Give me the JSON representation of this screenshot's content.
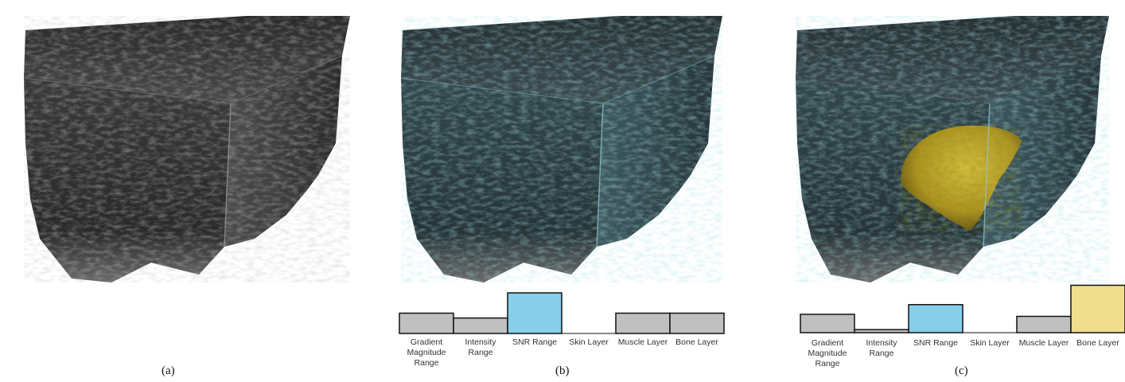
{
  "panels": [
    {
      "caption": "(a)",
      "overlay": "none",
      "has_bars": false
    },
    {
      "caption": "(b)",
      "overlay": "cyan",
      "has_bars": true,
      "bars": [
        {
          "label": [
            "Gradient",
            "Magnitude",
            "Range"
          ],
          "value": 0.5,
          "color": "#c0c0c0"
        },
        {
          "label": [
            "Intensity",
            "Range"
          ],
          "value": 0.38,
          "color": "#c0c0c0"
        },
        {
          "label": [
            "SNR Range"
          ],
          "value": 1.0,
          "color": "#87ceeb"
        },
        {
          "label": [
            "Skin Layer"
          ],
          "value": 0.0,
          "color": "#c0c0c0"
        },
        {
          "label": [
            "Muscle Layer"
          ],
          "value": 0.5,
          "color": "#c0c0c0"
        },
        {
          "label": [
            "Bone Layer"
          ],
          "value": 0.5,
          "color": "#c0c0c0"
        }
      ]
    },
    {
      "caption": "(c)",
      "overlay": "cyan+yellow",
      "has_bars": true,
      "bars": [
        {
          "label": [
            "Gradient",
            "Magnitude",
            "Range"
          ],
          "value": 0.36,
          "color": "#c0c0c0"
        },
        {
          "label": [
            "Intensity",
            "Range"
          ],
          "value": 0.06,
          "color": "#c0c0c0"
        },
        {
          "label": [
            "SNR Range"
          ],
          "value": 0.55,
          "color": "#87ceeb"
        },
        {
          "label": [
            "Skin Layer"
          ],
          "value": 0.0,
          "color": "#c0c0c0"
        },
        {
          "label": [
            "Muscle Layer"
          ],
          "value": 0.32,
          "color": "#c0c0c0"
        },
        {
          "label": [
            "Bone Layer"
          ],
          "value": 0.93,
          "color": "#f0de8c"
        }
      ]
    }
  ]
}
